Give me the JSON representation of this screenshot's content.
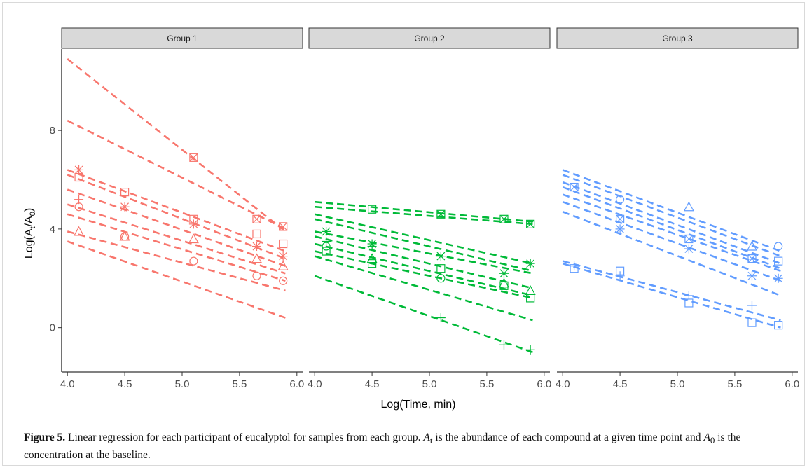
{
  "chart_data": {
    "type": "scatter",
    "xlabel": "Log(Time, min)",
    "ylabel_parts": [
      "Log(A",
      "t",
      "/A",
      "0",
      ")"
    ],
    "xlim": [
      3.95,
      6.05
    ],
    "ylim": [
      -1.8,
      11.3
    ],
    "x_ticks": [
      4.0,
      4.5,
      5.0,
      5.5,
      6.0
    ],
    "x_tick_labels": [
      "4.0",
      "4.5",
      "5.0",
      "5.5",
      "6.0"
    ],
    "y_ticks": [
      0,
      4,
      8
    ],
    "y_tick_labels": [
      "0",
      "4",
      "8"
    ],
    "grid": false,
    "line_style": "dashed",
    "facets": [
      {
        "label": "Group 1",
        "color": "#F8766D",
        "lines": [
          {
            "x": [
              4.0,
              5.9
            ],
            "y": [
              10.9,
              3.9
            ]
          },
          {
            "x": [
              4.0,
              5.9
            ],
            "y": [
              8.4,
              4.0
            ]
          },
          {
            "x": [
              4.0,
              5.9
            ],
            "y": [
              6.4,
              3.1
            ]
          },
          {
            "x": [
              4.0,
              5.9
            ],
            "y": [
              6.2,
              2.8
            ]
          },
          {
            "x": [
              4.0,
              5.9
            ],
            "y": [
              5.6,
              2.5
            ]
          },
          {
            "x": [
              4.0,
              5.9
            ],
            "y": [
              5.0,
              2.2
            ]
          },
          {
            "x": [
              4.0,
              5.9
            ],
            "y": [
              4.6,
              1.9
            ]
          },
          {
            "x": [
              4.0,
              5.9
            ],
            "y": [
              3.9,
              1.5
            ]
          },
          {
            "x": [
              4.0,
              5.9
            ],
            "y": [
              3.5,
              0.4
            ]
          }
        ],
        "points": [
          {
            "shape": "asterisk",
            "x": 4.1,
            "y": 6.4
          },
          {
            "shape": "square",
            "x": 4.1,
            "y": 6.1
          },
          {
            "shape": "plus",
            "x": 4.1,
            "y": 5.2
          },
          {
            "shape": "circle",
            "x": 4.1,
            "y": 4.9
          },
          {
            "shape": "triangle",
            "x": 4.1,
            "y": 3.9
          },
          {
            "shape": "square",
            "x": 4.5,
            "y": 5.5
          },
          {
            "shape": "asterisk",
            "x": 4.5,
            "y": 4.9
          },
          {
            "shape": "circle",
            "x": 4.5,
            "y": 3.7
          },
          {
            "shape": "triangle",
            "x": 4.5,
            "y": 3.7
          },
          {
            "shape": "squarex",
            "x": 5.1,
            "y": 6.9
          },
          {
            "shape": "square",
            "x": 5.1,
            "y": 4.4
          },
          {
            "shape": "asterisk",
            "x": 5.1,
            "y": 4.2
          },
          {
            "shape": "triangle",
            "x": 5.1,
            "y": 3.6
          },
          {
            "shape": "circle",
            "x": 5.1,
            "y": 2.7
          },
          {
            "shape": "squarex",
            "x": 5.65,
            "y": 4.4
          },
          {
            "shape": "square",
            "x": 5.65,
            "y": 3.8
          },
          {
            "shape": "asterisk",
            "x": 5.65,
            "y": 3.3
          },
          {
            "shape": "triangle",
            "x": 5.65,
            "y": 2.8
          },
          {
            "shape": "circle",
            "x": 5.65,
            "y": 2.1
          },
          {
            "shape": "squarex",
            "x": 5.88,
            "y": 4.1
          },
          {
            "shape": "square",
            "x": 5.88,
            "y": 3.4
          },
          {
            "shape": "asterisk",
            "x": 5.88,
            "y": 2.9
          },
          {
            "shape": "triangle",
            "x": 5.88,
            "y": 2.5
          },
          {
            "shape": "circle",
            "x": 5.88,
            "y": 1.9
          }
        ]
      },
      {
        "label": "Group 2",
        "color": "#00BA38",
        "lines": [
          {
            "x": [
              4.0,
              5.9
            ],
            "y": [
              5.1,
              4.3
            ]
          },
          {
            "x": [
              4.0,
              5.9
            ],
            "y": [
              4.9,
              4.2
            ]
          },
          {
            "x": [
              4.0,
              5.9
            ],
            "y": [
              4.6,
              2.6
            ]
          },
          {
            "x": [
              4.0,
              5.9
            ],
            "y": [
              4.4,
              2.3
            ]
          },
          {
            "x": [
              4.0,
              5.9
            ],
            "y": [
              3.9,
              2.2
            ]
          },
          {
            "x": [
              4.0,
              5.9
            ],
            "y": [
              3.7,
              1.6
            ]
          },
          {
            "x": [
              4.0,
              5.9
            ],
            "y": [
              3.4,
              1.3
            ]
          },
          {
            "x": [
              4.0,
              5.9
            ],
            "y": [
              3.1,
              1.2
            ]
          },
          {
            "x": [
              4.0,
              5.9
            ],
            "y": [
              2.9,
              0.3
            ]
          },
          {
            "x": [
              4.0,
              5.9
            ],
            "y": [
              2.1,
              -1.0
            ]
          }
        ],
        "points": [
          {
            "shape": "asterisk",
            "x": 4.1,
            "y": 3.9
          },
          {
            "shape": "plus",
            "x": 4.1,
            "y": 3.5
          },
          {
            "shape": "circle",
            "x": 4.1,
            "y": 3.3
          },
          {
            "shape": "square",
            "x": 4.1,
            "y": 3.1
          },
          {
            "shape": "square",
            "x": 4.5,
            "y": 4.8
          },
          {
            "shape": "asterisk",
            "x": 4.5,
            "y": 3.4
          },
          {
            "shape": "plus",
            "x": 4.5,
            "y": 3.3
          },
          {
            "shape": "triangle",
            "x": 4.5,
            "y": 2.8
          },
          {
            "shape": "square",
            "x": 4.5,
            "y": 2.6
          },
          {
            "shape": "squarex",
            "x": 5.1,
            "y": 4.6
          },
          {
            "shape": "asterisk",
            "x": 5.1,
            "y": 2.9
          },
          {
            "shape": "square",
            "x": 5.1,
            "y": 2.4
          },
          {
            "shape": "circle",
            "x": 5.1,
            "y": 2.0
          },
          {
            "shape": "plus",
            "x": 5.1,
            "y": 0.4
          },
          {
            "shape": "squarex",
            "x": 5.65,
            "y": 4.4
          },
          {
            "shape": "asterisk",
            "x": 5.65,
            "y": 2.2
          },
          {
            "shape": "triangle",
            "x": 5.65,
            "y": 1.8
          },
          {
            "shape": "square",
            "x": 5.65,
            "y": 1.7
          },
          {
            "shape": "plus",
            "x": 5.65,
            "y": -0.7
          },
          {
            "shape": "squarex",
            "x": 5.88,
            "y": 4.2
          },
          {
            "shape": "asterisk",
            "x": 5.88,
            "y": 2.6
          },
          {
            "shape": "triangle",
            "x": 5.88,
            "y": 1.5
          },
          {
            "shape": "square",
            "x": 5.88,
            "y": 1.2
          },
          {
            "shape": "plus",
            "x": 5.88,
            "y": -0.9
          }
        ]
      },
      {
        "label": "Group 3",
        "color": "#619CFF",
        "lines": [
          {
            "x": [
              4.0,
              5.9
            ],
            "y": [
              6.4,
              3.1
            ]
          },
          {
            "x": [
              4.0,
              5.9
            ],
            "y": [
              6.2,
              2.9
            ]
          },
          {
            "x": [
              4.0,
              5.9
            ],
            "y": [
              5.9,
              2.6
            ]
          },
          {
            "x": [
              4.0,
              5.9
            ],
            "y": [
              5.7,
              2.4
            ]
          },
          {
            "x": [
              4.0,
              5.9
            ],
            "y": [
              5.4,
              2.3
            ]
          },
          {
            "x": [
              4.0,
              5.9
            ],
            "y": [
              5.1,
              1.9
            ]
          },
          {
            "x": [
              4.0,
              5.9
            ],
            "y": [
              4.7,
              1.3
            ]
          },
          {
            "x": [
              4.0,
              5.9
            ],
            "y": [
              2.7,
              0.3
            ]
          },
          {
            "x": [
              4.0,
              5.9
            ],
            "y": [
              2.6,
              0.0
            ]
          }
        ],
        "points": [
          {
            "shape": "squarex",
            "x": 4.1,
            "y": 5.7
          },
          {
            "shape": "square",
            "x": 4.1,
            "y": 2.4
          },
          {
            "shape": "plus",
            "x": 4.1,
            "y": 2.5
          },
          {
            "shape": "circle",
            "x": 4.5,
            "y": 5.2
          },
          {
            "shape": "squarex",
            "x": 4.5,
            "y": 4.4
          },
          {
            "shape": "asterisk",
            "x": 4.5,
            "y": 4.0
          },
          {
            "shape": "square",
            "x": 4.5,
            "y": 2.3
          },
          {
            "shape": "plus",
            "x": 4.5,
            "y": 2.1
          },
          {
            "shape": "triangle",
            "x": 5.1,
            "y": 4.9
          },
          {
            "shape": "squarex",
            "x": 5.1,
            "y": 3.6
          },
          {
            "shape": "asterisk",
            "x": 5.1,
            "y": 3.2
          },
          {
            "shape": "plus",
            "x": 5.1,
            "y": 1.3
          },
          {
            "shape": "square",
            "x": 5.1,
            "y": 1.0
          },
          {
            "shape": "triangle",
            "x": 5.65,
            "y": 3.3
          },
          {
            "shape": "squarex",
            "x": 5.65,
            "y": 2.8
          },
          {
            "shape": "asterisk",
            "x": 5.65,
            "y": 2.1
          },
          {
            "shape": "plus",
            "x": 5.65,
            "y": 0.9
          },
          {
            "shape": "square",
            "x": 5.65,
            "y": 0.2
          },
          {
            "shape": "circle",
            "x": 5.88,
            "y": 3.3
          },
          {
            "shape": "square",
            "x": 5.88,
            "y": 2.7
          },
          {
            "shape": "asterisk",
            "x": 5.88,
            "y": 2.0
          },
          {
            "shape": "square",
            "x": 5.88,
            "y": 0.1
          }
        ]
      }
    ]
  },
  "caption": {
    "label": "Figure 5.",
    "text_1": " Linear regression for each participant of eucalyptol for samples from each group. ",
    "a": "A",
    "t_sub": "t",
    "text_2": " is the abundance of each compound at a given time point and ",
    "zero_sub": "0",
    "text_3": " is the concentration at the baseline."
  }
}
